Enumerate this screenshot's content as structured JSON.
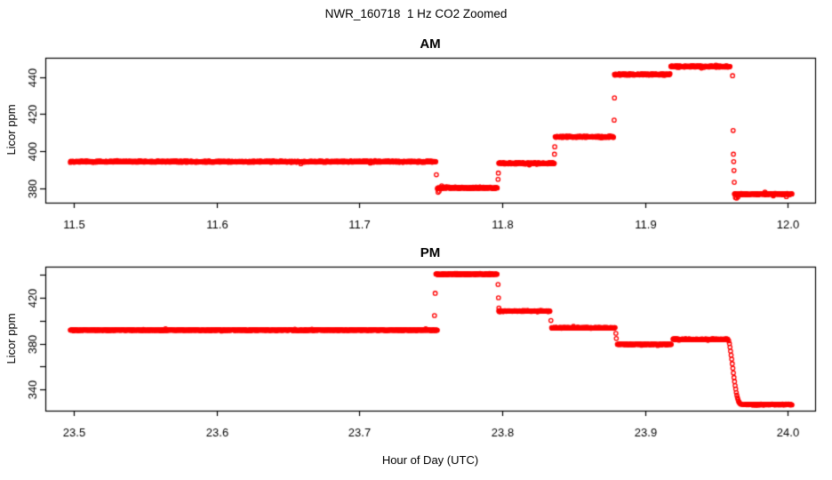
{
  "title": "NWR_160718  1 Hz CO2 Zoomed",
  "xlabel": "Hour of Day (UTC)",
  "colors": {
    "points": "#FF0000",
    "axis": "#000000",
    "background": "#FFFFFF"
  },
  "chart_data": [
    {
      "type": "scatter",
      "panel": "AM",
      "title": "AM",
      "ylabel": "Licor ppm",
      "marker": "open-circle",
      "grid": false,
      "xlim": [
        11.48,
        12.019
      ],
      "ylim": [
        372.2,
        450.5
      ],
      "xticks": [
        {
          "v": 11.5,
          "label": "11.5"
        },
        {
          "v": 11.6,
          "label": "11.6"
        },
        {
          "v": 11.7,
          "label": "11.7"
        },
        {
          "v": 11.8,
          "label": "11.8"
        },
        {
          "v": 11.9,
          "label": "11.9"
        },
        {
          "v": 12.0,
          "label": "12.0"
        }
      ],
      "yticks": [
        {
          "v": 380,
          "label": "380"
        },
        {
          "v": 400,
          "label": "400"
        },
        {
          "v": 420,
          "label": "420"
        },
        {
          "v": 440,
          "label": "440"
        }
      ],
      "segments": [
        {
          "t0": 11.4975,
          "t1": 11.7535,
          "value": 394.4,
          "noise": 0.45
        },
        {
          "t0": 11.7545,
          "t1": 11.7965,
          "value": 380.2,
          "noise": 0.5
        },
        {
          "t0": 11.7975,
          "t1": 11.8365,
          "value": 393.5,
          "noise": 0.45
        },
        {
          "t0": 11.837,
          "t1": 11.878,
          "value": 407.8,
          "noise": 0.45
        },
        {
          "t0": 11.8785,
          "t1": 11.9175,
          "value": 441.5,
          "noise": 0.5
        },
        {
          "t0": 11.918,
          "t1": 11.9595,
          "value": 445.8,
          "noise": 0.5
        },
        {
          "t0": 11.9625,
          "t1": 12.003,
          "value": 376.8,
          "noise": 0.45
        }
      ],
      "transitions": [
        [
          11.7538,
          387.3
        ],
        [
          11.755,
          377.8
        ],
        [
          11.7558,
          378.4
        ],
        [
          11.797,
          384.8
        ],
        [
          11.7972,
          388.2
        ],
        [
          11.8365,
          398.4
        ],
        [
          11.8367,
          402.4
        ],
        [
          11.8783,
          416.8
        ],
        [
          11.8785,
          428.8
        ],
        [
          11.9612,
          440.8
        ],
        [
          11.9616,
          411.2
        ],
        [
          11.9618,
          398.4
        ],
        [
          11.962,
          394.4
        ],
        [
          11.9622,
          389.6
        ],
        [
          11.9624,
          383.2
        ],
        [
          11.9632,
          375.0
        ],
        [
          11.964,
          374.6
        ],
        [
          11.965,
          375.3
        ]
      ]
    },
    {
      "type": "scatter",
      "panel": "PM",
      "title": "PM",
      "ylabel": "Licor ppm",
      "marker": "open-circle",
      "grid": false,
      "xlim": [
        23.48,
        24.019
      ],
      "ylim": [
        321.6,
        447.1
      ],
      "xticks": [
        {
          "v": 23.5,
          "label": "23.5"
        },
        {
          "v": 23.6,
          "label": "23.6"
        },
        {
          "v": 23.7,
          "label": "23.7"
        },
        {
          "v": 23.8,
          "label": "23.8"
        },
        {
          "v": 23.9,
          "label": "23.9"
        },
        {
          "v": 24.0,
          "label": "24.0"
        }
      ],
      "yticks": [
        {
          "v": 340,
          "label": "340"
        },
        {
          "v": 360,
          "label": ""
        },
        {
          "v": 380,
          "label": "380"
        },
        {
          "v": 400,
          "label": ""
        },
        {
          "v": 420,
          "label": "420"
        },
        {
          "v": 440,
          "label": ""
        }
      ],
      "segments": [
        {
          "t0": 23.4975,
          "t1": 23.7545,
          "value": 391.8,
          "noise": 0.5
        },
        {
          "t0": 23.7535,
          "t1": 23.7965,
          "value": 440.6,
          "noise": 0.7
        },
        {
          "t0": 23.7975,
          "t1": 23.8335,
          "value": 408.4,
          "noise": 0.55
        },
        {
          "t0": 23.8345,
          "t1": 23.879,
          "value": 393.8,
          "noise": 0.55
        },
        {
          "t0": 23.8805,
          "t1": 23.9185,
          "value": 379.4,
          "noise": 0.5
        },
        {
          "t0": 23.9195,
          "t1": 23.958,
          "value": 383.8,
          "noise": 0.5
        },
        {
          "t0": 23.97,
          "t1": 24.003,
          "value": 326.9,
          "noise": 0.45
        }
      ],
      "transitions": [
        [
          23.7525,
          404.5
        ],
        [
          23.753,
          423.9
        ],
        [
          23.797,
          431.6
        ],
        [
          23.7973,
          420.0
        ],
        [
          23.7976,
          411.0
        ],
        [
          23.834,
          400.2
        ],
        [
          23.8795,
          389.0
        ],
        [
          23.8798,
          384.5
        ],
        [
          23.9585,
          382.5
        ],
        [
          23.959,
          380.0
        ],
        [
          23.9594,
          377.0
        ],
        [
          23.9598,
          373.5
        ],
        [
          23.9602,
          370.0
        ],
        [
          23.9606,
          366.5
        ],
        [
          23.961,
          362.5
        ],
        [
          23.9614,
          358.5
        ],
        [
          23.9618,
          354.5
        ],
        [
          23.9622,
          350.5
        ],
        [
          23.9626,
          347.0
        ],
        [
          23.963,
          343.5
        ],
        [
          23.9634,
          340.5
        ],
        [
          23.9638,
          337.5
        ],
        [
          23.9642,
          335.0
        ],
        [
          23.9646,
          333.0
        ],
        [
          23.965,
          331.2
        ],
        [
          23.9654,
          329.8
        ],
        [
          23.9658,
          328.8
        ],
        [
          23.9663,
          328.0
        ],
        [
          23.9668,
          327.5
        ],
        [
          23.9674,
          327.2
        ],
        [
          23.9682,
          327.0
        ],
        [
          23.969,
          326.9
        ]
      ]
    }
  ]
}
